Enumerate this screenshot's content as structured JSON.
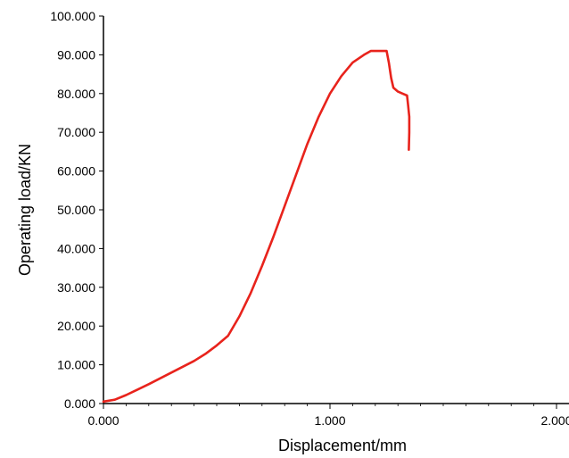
{
  "chart_data": {
    "type": "line",
    "title": "",
    "xlabel": "Displacement/mm",
    "ylabel": "Operating load/KN",
    "xlim": [
      0,
      2
    ],
    "ylim": [
      0,
      100
    ],
    "x_ticks": [
      "0.000",
      "1.000",
      "2.000"
    ],
    "y_ticks": [
      "0.000",
      "10.000",
      "20.000",
      "30.000",
      "40.000",
      "50.000",
      "60.000",
      "70.000",
      "80.000",
      "90.000",
      "100.000"
    ],
    "grid": false,
    "legend": "none",
    "series": [
      {
        "color": "#e8231c",
        "x": [
          0.0,
          0.05,
          0.1,
          0.15,
          0.2,
          0.25,
          0.3,
          0.35,
          0.4,
          0.45,
          0.5,
          0.55,
          0.6,
          0.65,
          0.7,
          0.75,
          0.8,
          0.85,
          0.9,
          0.95,
          1.0,
          1.05,
          1.1,
          1.15,
          1.18,
          1.2,
          1.25,
          1.26,
          1.27,
          1.28,
          1.3,
          1.32,
          1.34,
          1.345,
          1.35,
          1.35,
          1.348
        ],
        "y": [
          0.5,
          1.0,
          2.2,
          3.6,
          5.0,
          6.5,
          8.0,
          9.5,
          11.0,
          12.8,
          15.0,
          17.5,
          22.5,
          28.5,
          35.5,
          43.0,
          51.0,
          59.0,
          67.0,
          74.0,
          80.0,
          84.5,
          88.0,
          90.0,
          91.0,
          91.0,
          91.0,
          88.0,
          84.0,
          81.5,
          80.5,
          80.0,
          79.5,
          77.0,
          74.0,
          70.0,
          65.5
        ]
      }
    ]
  }
}
